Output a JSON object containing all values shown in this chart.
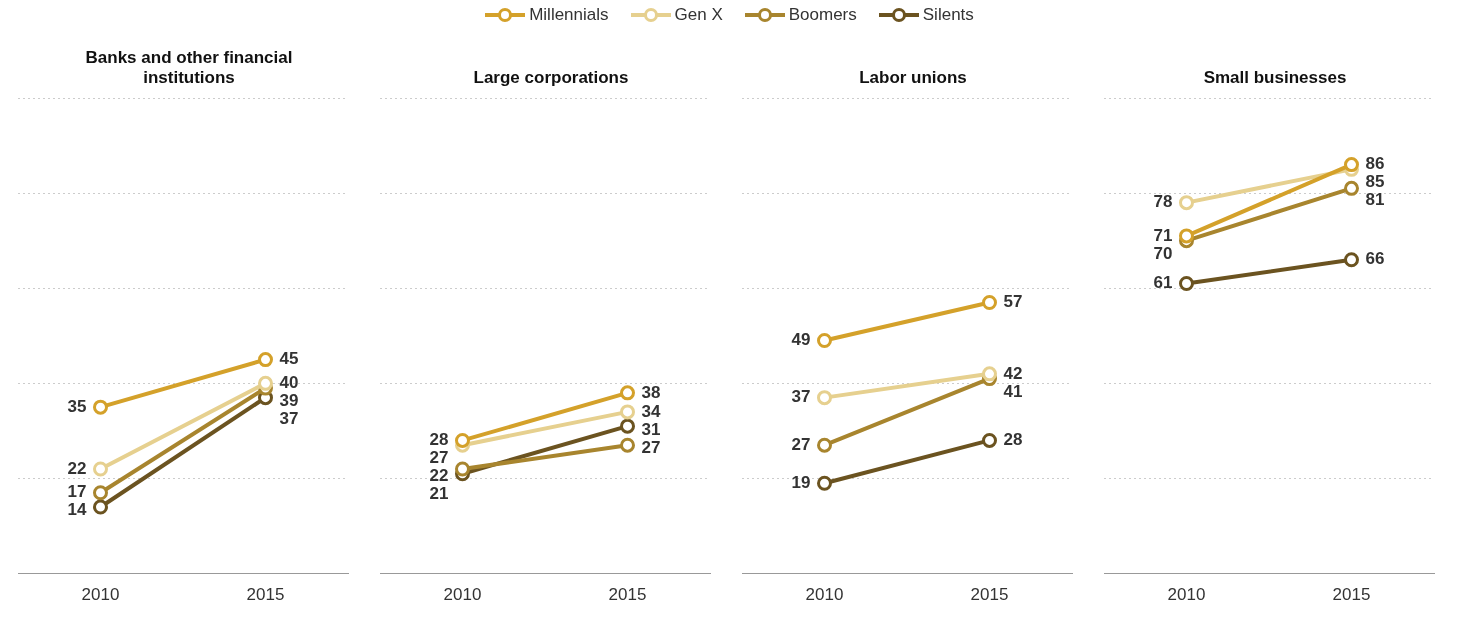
{
  "chart_data": [
    {
      "type": "line",
      "title": "Banks and other financial institutions",
      "categories": [
        "2010",
        "2015"
      ],
      "legend": "top",
      "marker": "circle",
      "line_style": "solid",
      "grid": "y",
      "tick_labels": "x",
      "data_labels": true,
      "ylim": [
        0,
        100
      ],
      "yticks": [
        {
          "value": 0,
          "label": null
        },
        {
          "value": 20,
          "label": null
        },
        {
          "value": 40,
          "label": null
        },
        {
          "value": 60,
          "label": null
        },
        {
          "value": 80,
          "label": null
        },
        {
          "value": 100,
          "label": null
        }
      ],
      "series": [
        {
          "name": "Millennials",
          "color": "#d4a12a",
          "values": [
            35,
            45
          ]
        },
        {
          "name": "Gen X",
          "color": "#e6d08f",
          "values": [
            22,
            40
          ]
        },
        {
          "name": "Boomers",
          "color": "#a8852e",
          "values": [
            17,
            39
          ]
        },
        {
          "name": "Silents",
          "color": "#6b5320",
          "values": [
            14,
            37
          ]
        }
      ]
    },
    {
      "type": "line",
      "title": "Large corporations",
      "categories": [
        "2010",
        "2015"
      ],
      "marker": "circle",
      "line_style": "solid",
      "grid": "y",
      "tick_labels": "x",
      "data_labels": true,
      "ylim": [
        0,
        100
      ],
      "yticks": [
        {
          "value": 0,
          "label": null
        },
        {
          "value": 20,
          "label": null
        },
        {
          "value": 40,
          "label": null
        },
        {
          "value": 60,
          "label": null
        },
        {
          "value": 80,
          "label": null
        },
        {
          "value": 100,
          "label": null
        }
      ],
      "series": [
        {
          "color": "#d4a12a",
          "values": [
            28,
            38
          ]
        },
        {
          "color": "#e6d08f",
          "values": [
            27,
            34
          ]
        },
        {
          "color": "#a8852e",
          "values": [
            22,
            27
          ]
        },
        {
          "color": "#6b5320",
          "values": [
            21,
            31
          ]
        }
      ]
    },
    {
      "type": "line",
      "title": "Labor unions",
      "categories": [
        "2010",
        "2015"
      ],
      "marker": "circle",
      "line_style": "solid",
      "grid": "y",
      "tick_labels": "x",
      "data_labels": true,
      "ylim": [
        0,
        100
      ],
      "yticks": [
        {
          "value": 0,
          "label": null
        },
        {
          "value": 20,
          "label": null
        },
        {
          "value": 40,
          "label": null
        },
        {
          "value": 60,
          "label": null
        },
        {
          "value": 80,
          "label": null
        },
        {
          "value": 100,
          "label": null
        }
      ],
      "series": [
        {
          "color": "#d4a12a",
          "values": [
            49,
            57
          ]
        },
        {
          "color": "#e6d08f",
          "values": [
            37,
            42
          ]
        },
        {
          "color": "#a8852e",
          "values": [
            27,
            41
          ]
        },
        {
          "color": "#6b5320",
          "values": [
            19,
            28
          ]
        }
      ]
    },
    {
      "type": "line",
      "title": "Small businesses",
      "categories": [
        "2010",
        "2015"
      ],
      "marker": "circle",
      "line_style": "solid",
      "grid": "y",
      "tick_labels": "x",
      "data_labels": true,
      "ylim": [
        0,
        100
      ],
      "yticks": [
        {
          "value": 0,
          "label": null
        },
        {
          "value": 20,
          "label": null
        },
        {
          "value": 40,
          "label": null
        },
        {
          "value": 60,
          "label": null
        },
        {
          "value": 80,
          "label": null
        },
        {
          "value": 100,
          "label": null
        }
      ],
      "series": [
        {
          "color": "#d4a12a",
          "values": [
            71,
            86
          ]
        },
        {
          "color": "#e6d08f",
          "values": [
            78,
            85
          ]
        },
        {
          "color": "#a8852e",
          "values": [
            70,
            81
          ]
        },
        {
          "color": "#6b5320",
          "values": [
            61,
            66
          ]
        }
      ]
    }
  ]
}
